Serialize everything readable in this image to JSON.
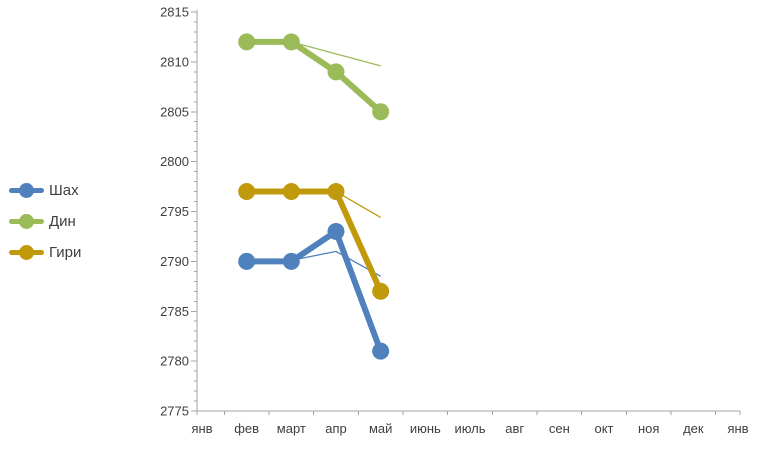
{
  "chart_data": {
    "type": "line",
    "title": "",
    "categories": [
      "янв",
      "фев",
      "март",
      "апр",
      "май",
      "июнь",
      "июль",
      "авг",
      "сен",
      "окт",
      "ноя",
      "дек",
      "янв"
    ],
    "series": [
      {
        "name": "Шах",
        "color": "#4F81BD",
        "values": [
          null,
          2790,
          2790,
          2793,
          2781,
          null,
          null,
          null,
          null,
          null,
          null,
          null,
          null
        ]
      },
      {
        "name": "Дин",
        "color": "#9BBB59",
        "values": [
          null,
          2812,
          2812,
          2809,
          2805,
          null,
          null,
          null,
          null,
          null,
          null,
          null,
          null
        ]
      },
      {
        "name": "Гири",
        "color": "#C09A0B",
        "values": [
          null,
          2797,
          2797,
          2797,
          2787,
          null,
          null,
          null,
          null,
          null,
          null,
          null,
          null
        ]
      }
    ],
    "trend_lines": [
      {
        "series": "Шах",
        "color": "#4F81BD",
        "points": [
          {
            "x": 2,
            "v": 2790.1
          },
          {
            "x": 3,
            "v": 2791.0
          },
          {
            "x": 4,
            "v": 2788.5
          }
        ]
      },
      {
        "series": "Дин",
        "color": "#9BBB59",
        "points": [
          {
            "x": 2,
            "v": 2812.0
          },
          {
            "x": 4,
            "v": 2809.6
          }
        ]
      },
      {
        "series": "Гири",
        "color": "#C09A0B",
        "points": [
          {
            "x": 3,
            "v": 2797.0
          },
          {
            "x": 4,
            "v": 2794.4
          }
        ]
      }
    ],
    "y_axis": {
      "min": 2775,
      "max": 2815,
      "major_step": 5,
      "minor_step": 1,
      "tick_labels": [
        "2775",
        "2780",
        "2785",
        "2790",
        "2795",
        "2800",
        "2805",
        "2810",
        "2815"
      ]
    },
    "x_axis": {
      "tick_labels": [
        "янв",
        "фев",
        "март",
        "апр",
        "май",
        "июнь",
        "июль",
        "авг",
        "сен",
        "окт",
        "ноя",
        "дек",
        "янв"
      ]
    },
    "legend": {
      "position": "left",
      "items": [
        "Шах",
        "Дин",
        "Гири"
      ]
    },
    "grid": "off",
    "colors": {
      "axis": "#A6A6A6",
      "text": "#3F3F3F",
      "background": "#FFFFFF"
    }
  }
}
